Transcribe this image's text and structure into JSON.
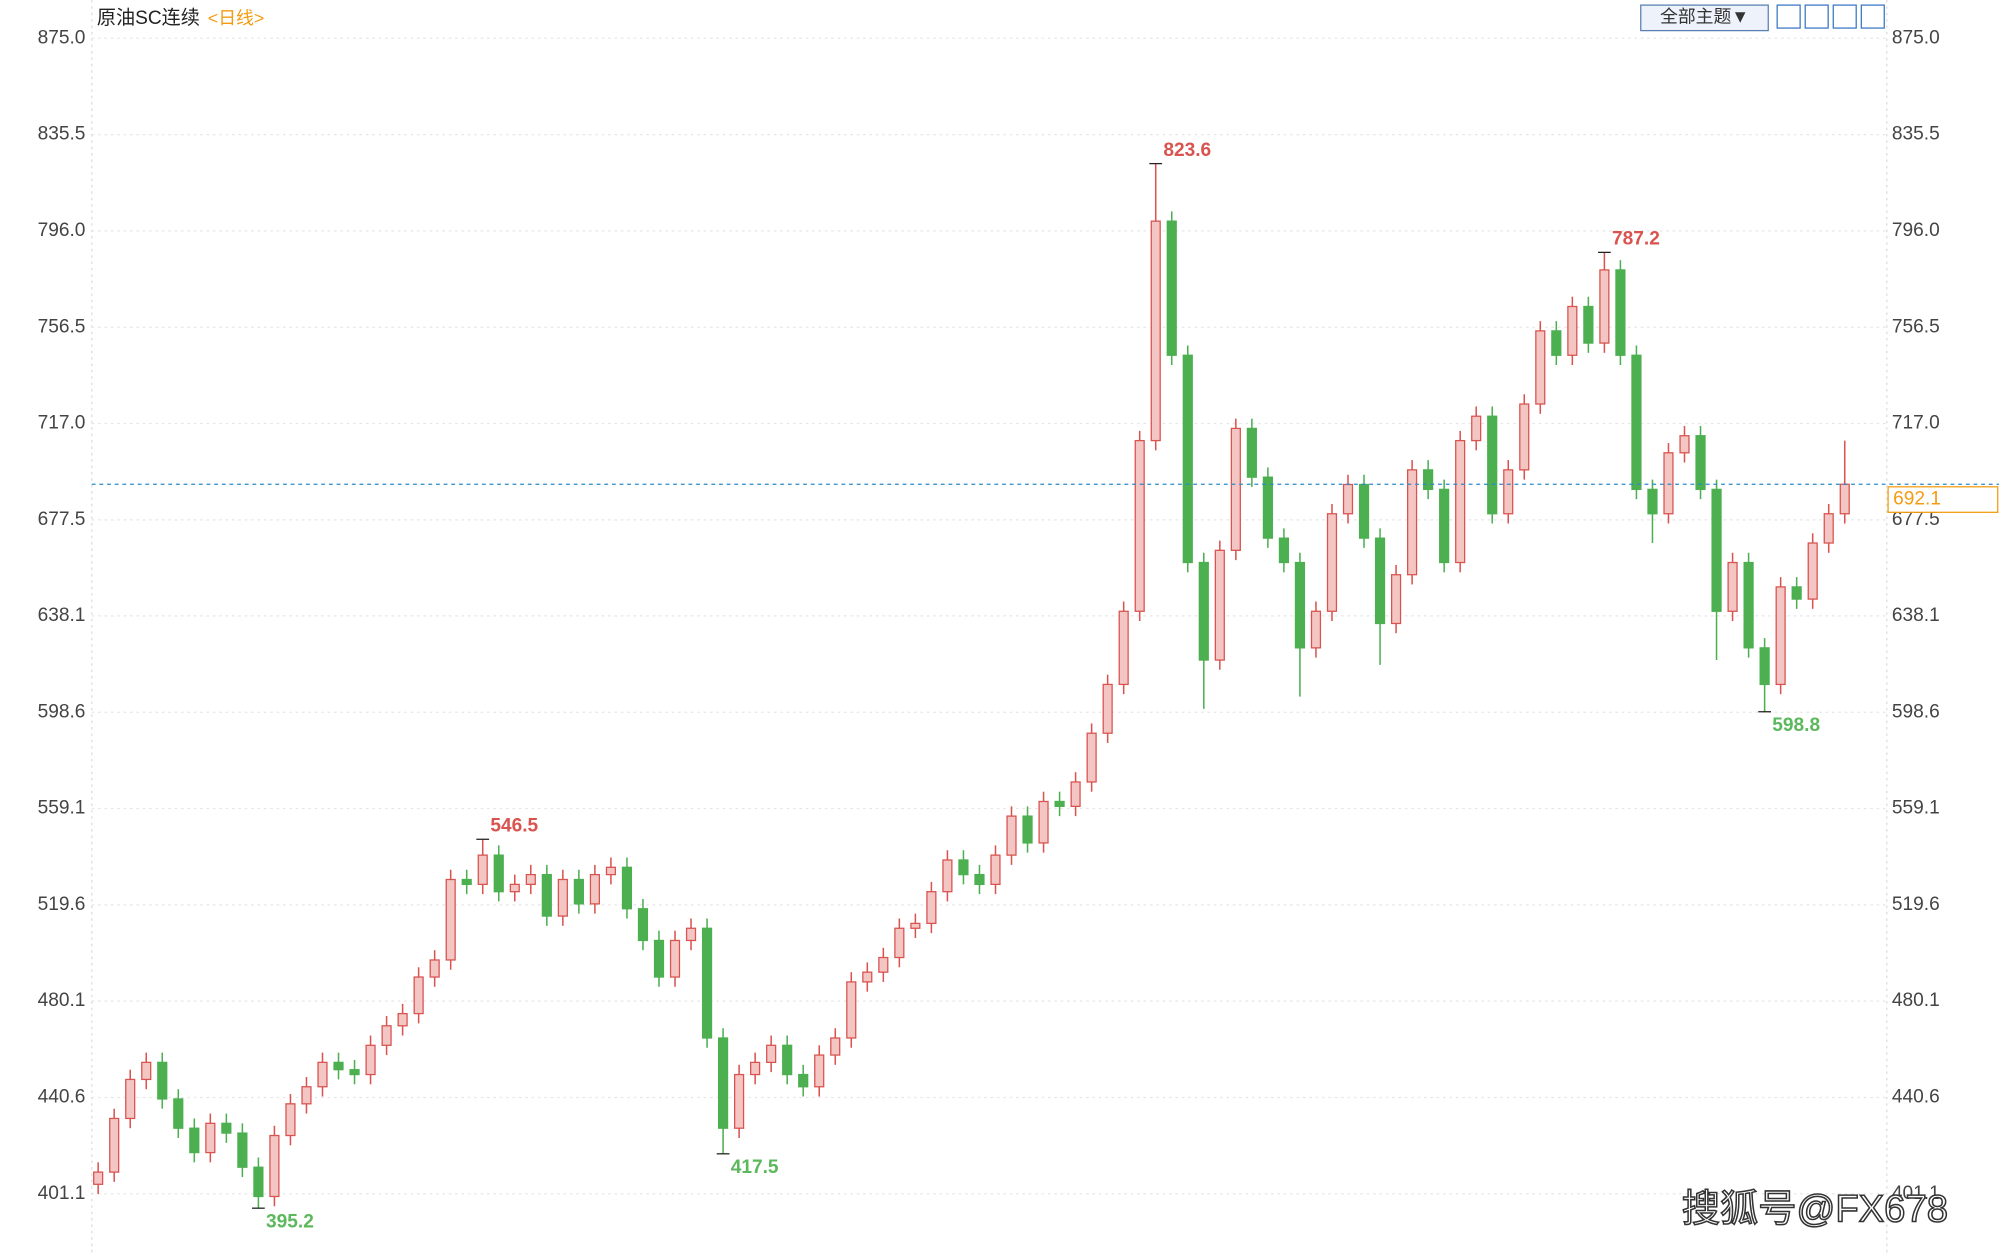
{
  "chart_data": {
    "type": "candlestick",
    "title": "原油SC连续",
    "period": "<日线>",
    "theme_button": "全部主题▼",
    "watermark": "搜狐号@FX678",
    "up_color": "#d9534f",
    "down_color": "#4caf50",
    "ylim": [
      376.0,
      890.7
    ],
    "yticks": [
      {
        "value": 875.0,
        "label": "875.0"
      },
      {
        "value": 835.5,
        "label": "835.5"
      },
      {
        "value": 796.0,
        "label": "796.0"
      },
      {
        "value": 756.5,
        "label": "756.5"
      },
      {
        "value": 717.0,
        "label": "717.0"
      },
      {
        "value": 677.5,
        "label": "677.5"
      },
      {
        "value": 638.1,
        "label": "638.1"
      },
      {
        "value": 598.6,
        "label": "598.6"
      },
      {
        "value": 559.1,
        "label": "559.1"
      },
      {
        "value": 519.6,
        "label": "519.6"
      },
      {
        "value": 480.1,
        "label": "480.1"
      },
      {
        "value": 440.6,
        "label": "440.6"
      },
      {
        "value": 401.1,
        "label": "401.1"
      }
    ],
    "grid": true,
    "open": [
      405,
      410,
      432,
      448,
      455,
      440,
      428,
      418,
      430,
      426,
      412,
      400,
      425,
      438,
      445,
      455,
      452,
      450,
      462,
      470,
      475,
      490,
      497,
      530,
      528,
      540,
      525,
      528,
      532,
      515,
      530,
      520,
      532,
      535,
      518,
      505,
      490,
      505,
      510,
      465,
      428,
      450,
      455,
      462,
      450,
      445,
      458,
      465,
      488,
      492,
      498,
      510,
      512,
      525,
      538,
      532,
      528,
      540,
      556,
      545,
      562,
      560,
      570,
      590,
      610,
      640,
      710,
      800,
      745,
      660,
      620,
      665,
      715,
      695,
      670,
      660,
      625,
      640,
      680,
      692,
      670,
      635,
      655,
      698,
      690,
      660,
      710,
      720,
      680,
      698,
      725,
      755,
      745,
      765,
      750,
      780,
      745,
      690,
      680,
      705,
      712,
      690,
      640,
      660,
      625,
      610,
      650,
      645,
      668,
      680
    ],
    "high": [
      414,
      436,
      452,
      459,
      459,
      444,
      432,
      434,
      434,
      430,
      416,
      429,
      442,
      449,
      459,
      459,
      456,
      466,
      474,
      479,
      494,
      501,
      534,
      534,
      546.5,
      544,
      532,
      536,
      536,
      534,
      534,
      536,
      539,
      539,
      522,
      509,
      509,
      514,
      514,
      469,
      454,
      459,
      466,
      466,
      454,
      462,
      469,
      492,
      496,
      502,
      514,
      516,
      529,
      542,
      542,
      536,
      544,
      560,
      560,
      566,
      566,
      574,
      594,
      614,
      644,
      714,
      823.6,
      804,
      749,
      664,
      669,
      719,
      719,
      699,
      674,
      664,
      644,
      684,
      696,
      696,
      674,
      659,
      702,
      702,
      694,
      714,
      724,
      724,
      702,
      729,
      759,
      759,
      769,
      769,
      787.2,
      784,
      749,
      694,
      709,
      716,
      716,
      694,
      664,
      664,
      629,
      654,
      654,
      672,
      684,
      710
    ],
    "low": [
      401,
      406,
      428,
      444,
      436,
      424,
      414,
      414,
      422,
      408,
      395.2,
      396,
      421,
      434,
      441,
      448,
      446,
      446,
      458,
      466,
      471,
      486,
      493,
      524,
      524,
      521,
      521,
      524,
      511,
      511,
      516,
      516,
      528,
      514,
      501,
      486,
      486,
      501,
      461,
      417.5,
      424,
      446,
      451,
      446,
      441,
      441,
      454,
      461,
      484,
      488,
      494,
      506,
      508,
      521,
      528,
      524,
      524,
      536,
      541,
      541,
      556,
      556,
      566,
      586,
      606,
      636,
      706,
      741,
      656,
      600,
      616,
      661,
      691,
      666,
      656,
      605,
      621,
      636,
      676,
      666,
      618,
      631,
      651,
      686,
      656,
      656,
      706,
      676,
      676,
      694,
      721,
      741,
      741,
      746,
      746,
      741,
      686,
      668,
      676,
      701,
      686,
      620,
      636,
      621,
      598.8,
      606,
      641,
      641,
      664,
      676
    ],
    "close": [
      410,
      432,
      448,
      455,
      440,
      428,
      418,
      430,
      426,
      412,
      400,
      425,
      438,
      445,
      455,
      452,
      450,
      462,
      470,
      475,
      490,
      497,
      530,
      528,
      540,
      525,
      528,
      532,
      515,
      530,
      520,
      532,
      535,
      518,
      505,
      490,
      505,
      510,
      465,
      428,
      450,
      455,
      462,
      450,
      445,
      458,
      465,
      488,
      492,
      498,
      510,
      512,
      525,
      538,
      532,
      528,
      540,
      556,
      545,
      562,
      560,
      570,
      590,
      610,
      640,
      710,
      800,
      745,
      660,
      620,
      665,
      715,
      695,
      670,
      660,
      625,
      640,
      680,
      692,
      670,
      635,
      655,
      698,
      690,
      660,
      710,
      720,
      680,
      698,
      725,
      755,
      745,
      765,
      750,
      780,
      745,
      690,
      680,
      705,
      712,
      690,
      640,
      660,
      625,
      610,
      650,
      645,
      668,
      680,
      692.1
    ]
  }
}
